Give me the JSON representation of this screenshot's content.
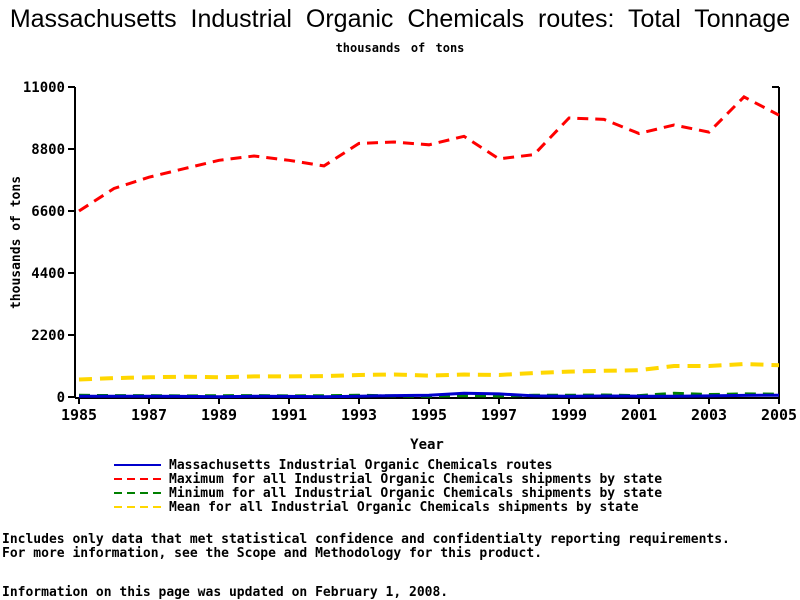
{
  "title": "Massachusetts Industrial Organic Chemicals routes: Total Tonnage",
  "subtitle": "thousands of tons",
  "chart_data": {
    "type": "line",
    "title": "Massachusetts Industrial Organic Chemicals routes: Total Tonnage",
    "subtitle": "thousands of tons",
    "xlabel": "Year",
    "ylabel": "thousands of tons",
    "ylim": [
      0,
      11000
    ],
    "yticks": [
      0,
      2200,
      4400,
      6600,
      8800,
      11000
    ],
    "xticks": [
      1985,
      1987,
      1989,
      1991,
      1993,
      1995,
      1997,
      1999,
      2001,
      2003,
      2005
    ],
    "x": [
      1985,
      1986,
      1987,
      1988,
      1989,
      1990,
      1991,
      1992,
      1993,
      1994,
      1995,
      1996,
      1997,
      1998,
      1999,
      2000,
      2001,
      2002,
      2003,
      2004,
      2005
    ],
    "grid": false,
    "legend_position": "bottom",
    "series": [
      {
        "name": "Massachusetts Industrial Organic Chemicals routes",
        "color": "#0000CC",
        "dash": "solid",
        "values": [
          30,
          25,
          30,
          20,
          10,
          25,
          20,
          10,
          30,
          50,
          60,
          130,
          110,
          40,
          30,
          35,
          30,
          25,
          40,
          55,
          65
        ]
      },
      {
        "name": "Maximum for all Industrial Organic Chemicals shipments by state",
        "color": "#FF0000",
        "dash": "dashed",
        "values": [
          6600,
          7400,
          7800,
          8100,
          8400,
          8550,
          8400,
          8200,
          9000,
          9050,
          8950,
          9250,
          8450,
          8600,
          9900,
          9850,
          9350,
          9650,
          9400,
          10650,
          10000
        ]
      },
      {
        "name": "Minimum for all Industrial Organic Chemicals shipments by state",
        "color": "#008000",
        "dash": "dashed",
        "values": [
          60,
          50,
          50,
          40,
          45,
          50,
          40,
          45,
          60,
          40,
          30,
          45,
          35,
          60,
          60,
          70,
          50,
          130,
          90,
          110,
          100
        ]
      },
      {
        "name": "Mean for all Industrial Organic Chemicals shipments by state",
        "color": "#FFD700",
        "dash": "dashed",
        "values": [
          620,
          670,
          700,
          720,
          700,
          730,
          730,
          740,
          780,
          800,
          760,
          800,
          780,
          850,
          900,
          930,
          950,
          1100,
          1100,
          1170,
          1130
        ]
      }
    ]
  },
  "footer": {
    "line1": "Includes only data that met statistical confidence and confidentialty reporting requirements.",
    "line2": "For more information, see the Scope and Methodology for this product.",
    "updated": "Information on this page was updated on February 1, 2008."
  }
}
